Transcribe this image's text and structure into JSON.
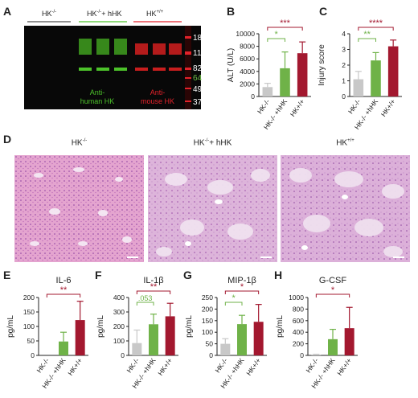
{
  "panels": {
    "A": "A",
    "B": "B",
    "C": "C",
    "D": "D",
    "E": "E",
    "F": "F",
    "G": "G",
    "H": "H"
  },
  "blot": {
    "lane_labels": [
      "HK-/-",
      "HK-/- + hHK",
      "HK+/+"
    ],
    "marker_labels": [
      "180",
      "115",
      "82",
      "64",
      "49",
      "37"
    ],
    "annot_human": "Anti-\nhuman HK",
    "annot_mouse": "Anti-\nmouse HK",
    "colors": {
      "human": "#4cc22a",
      "mouse": "#e2222a"
    }
  },
  "histology": {
    "labels": [
      "HK-/-",
      "HK-/- + hHK",
      "HK+/+"
    ]
  },
  "colors": {
    "grey": "#c8c8c8",
    "green": "#6fb248",
    "red": "#a3182f",
    "sig_green": "#6fb248",
    "sig_red": "#a3182f"
  },
  "chart_data": [
    {
      "panel": "B",
      "type": "bar",
      "ylabel": "ALT (U/L)",
      "ylim": [
        0,
        10000
      ],
      "yticks": [
        0,
        2000,
        4000,
        6000,
        8000,
        10000
      ],
      "categories": [
        "HK-/-",
        "HK-/- +hHK",
        "HK+/+"
      ],
      "values": [
        1500,
        4500,
        6900
      ],
      "errors": [
        600,
        2600,
        1800
      ],
      "sig": [
        {
          "from": 0,
          "to": 1,
          "label": "*",
          "color": "green",
          "level": 0
        },
        {
          "from": 0,
          "to": 2,
          "label": "***",
          "color": "red",
          "level": 1
        }
      ]
    },
    {
      "panel": "C",
      "type": "bar",
      "ylabel": "Injury score",
      "ylim": [
        0,
        4
      ],
      "yticks": [
        0,
        1,
        2,
        3,
        4
      ],
      "categories": [
        "HK-/-",
        "HK-/- +hHK",
        "HK+/+"
      ],
      "values": [
        1.1,
        2.3,
        3.2
      ],
      "errors": [
        0.5,
        0.5,
        0.4
      ],
      "sig": [
        {
          "from": 0,
          "to": 1,
          "label": "**",
          "color": "green",
          "level": 0
        },
        {
          "from": 0,
          "to": 2,
          "label": "****",
          "color": "red",
          "level": 1
        }
      ]
    },
    {
      "panel": "E",
      "type": "bar",
      "title": "IL-6",
      "ylabel": "pg/mL",
      "ylim": [
        0,
        200
      ],
      "yticks": [
        0,
        50,
        100,
        150,
        200
      ],
      "categories": [
        "HK-/-",
        "HK-/- +hHK",
        "HK+/+"
      ],
      "values": [
        0,
        48,
        122
      ],
      "errors": [
        0,
        32,
        65
      ],
      "sig": [
        {
          "from": 0,
          "to": 2,
          "label": "**",
          "color": "red",
          "level": 0
        }
      ]
    },
    {
      "panel": "F",
      "type": "bar",
      "title": "IL-1β",
      "ylabel": "pg/mL",
      "ylim": [
        0,
        400
      ],
      "yticks": [
        0,
        100,
        200,
        300,
        400
      ],
      "categories": [
        "HK-/-",
        "HK-/- +hHK",
        "HK+/+"
      ],
      "values": [
        85,
        215,
        270
      ],
      "errors": [
        90,
        70,
        90
      ],
      "sig": [
        {
          "from": 0,
          "to": 1,
          "label": ".053",
          "color": "green",
          "level": 0
        },
        {
          "from": 0,
          "to": 2,
          "label": "**",
          "color": "red",
          "level": 1
        }
      ]
    },
    {
      "panel": "G",
      "type": "bar",
      "title": "MIP-1β",
      "ylabel": "pg/mL",
      "ylim": [
        0,
        250
      ],
      "yticks": [
        0,
        50,
        100,
        150,
        200,
        250
      ],
      "categories": [
        "HK-/-",
        "HK-/- +hHK",
        "HK+/+"
      ],
      "values": [
        50,
        135,
        145
      ],
      "errors": [
        22,
        38,
        75
      ],
      "sig": [
        {
          "from": 0,
          "to": 1,
          "label": "*",
          "color": "green",
          "level": 0
        },
        {
          "from": 0,
          "to": 2,
          "label": "*",
          "color": "red",
          "level": 1
        }
      ]
    },
    {
      "panel": "H",
      "type": "bar",
      "title": "G-CSF",
      "ylabel": "pg/mL",
      "ylim": [
        0,
        1000
      ],
      "yticks": [
        0,
        200,
        400,
        600,
        800,
        1000
      ],
      "categories": [
        "HK-/-",
        "HK-/- +hHK",
        "HK+/+"
      ],
      "values": [
        15,
        280,
        470
      ],
      "errors": [
        5,
        170,
        360
      ],
      "sig": [
        {
          "from": 0,
          "to": 2,
          "label": "*",
          "color": "red",
          "level": 0
        }
      ]
    }
  ]
}
